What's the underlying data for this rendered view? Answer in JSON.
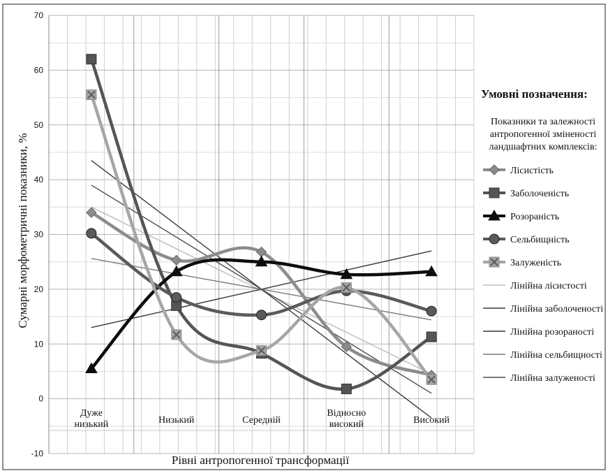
{
  "chart_data": {
    "type": "line",
    "ylabel": "Сумарні морфометричні показники, %",
    "xlabel": "Рівні антропогенної трансформації",
    "categories": [
      [
        "Дуже",
        "низький"
      ],
      [
        "Низький"
      ],
      [
        "Середній"
      ],
      [
        "Відносно",
        "високий"
      ],
      [
        "Високий"
      ]
    ],
    "yticks": [
      "70",
      "60",
      "50",
      "40",
      "30",
      "20",
      "10",
      "0",
      "-10"
    ],
    "ylim": [
      -10,
      70
    ],
    "grid": true,
    "legend": {
      "title": "Умовні позначення:",
      "subtitle": [
        "Показники та залежності",
        "антропогенної зміненості",
        "ландшафтних комплексів:"
      ],
      "placement": "right"
    },
    "series": [
      {
        "name": "Лісистість",
        "values": [
          34,
          25.3,
          26.8,
          9.5,
          4.3
        ],
        "marker": "diamond",
        "color": "#8c8c8c"
      },
      {
        "name": "Заболоченість",
        "values": [
          62,
          17,
          8.3,
          1.8,
          11.3
        ],
        "marker": "square",
        "color": "#555555"
      },
      {
        "name": "Розораність",
        "values": [
          5.5,
          23.2,
          25,
          22.7,
          23.2
        ],
        "marker": "triangle",
        "color": "#0d0d0d"
      },
      {
        "name": "Сельбищність",
        "values": [
          30.2,
          18.5,
          15.3,
          19.7,
          16
        ],
        "marker": "circle",
        "color": "#5a5a5a"
      },
      {
        "name": "Залуженість",
        "values": [
          55.5,
          11.7,
          8.8,
          20.3,
          3.5
        ],
        "marker": "x",
        "color": "#a6a6a6"
      }
    ],
    "trendlines": [
      {
        "name": "Лінійна лісистості",
        "from": 35,
        "to": 4.5,
        "color": "#bdbdbd"
      },
      {
        "name": "Лінійна заболоченості",
        "from": 43.5,
        "to": -3.5,
        "color": "#3c3c3c"
      },
      {
        "name": "Лінійна розораності",
        "from": 13,
        "to": 27,
        "color": "#353535"
      },
      {
        "name": "Лінійна сельбищності",
        "from": 25.6,
        "to": 14.4,
        "color": "#7a7a7a"
      },
      {
        "name": "Лінійна залуженості",
        "from": 39,
        "to": 1,
        "color": "#4d4d4d"
      }
    ]
  }
}
